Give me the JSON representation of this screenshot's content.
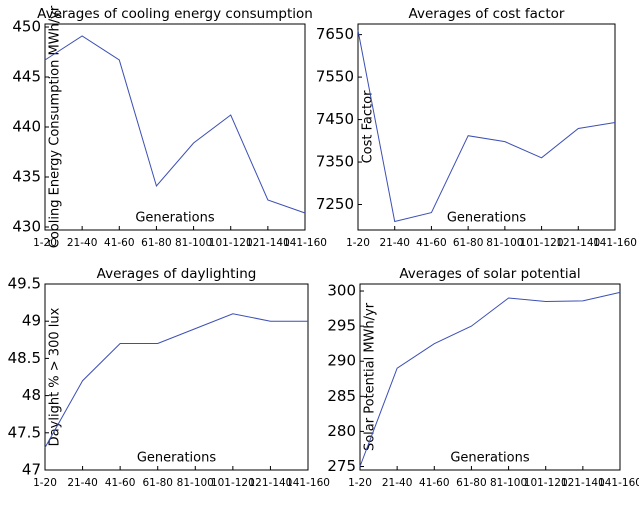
{
  "chart_data": [
    {
      "type": "line",
      "title": "Averages of cooling energy consumption",
      "ylabel": "Cooling Energy Consumption MWh/yr",
      "xlabel": "Generations",
      "categories": [
        "1-20",
        "21-40",
        "41-60",
        "61-80",
        "81-100",
        "101-120",
        "121-140",
        "141-160"
      ],
      "series": [
        {
          "color": "#3c4fb4",
          "values": [
            446.7,
            449.1,
            446.7,
            434.1,
            438.4,
            441.2,
            432.7,
            431.4
          ]
        }
      ],
      "ylim": [
        429.7,
        450.3
      ],
      "yticks": [
        430,
        435,
        440,
        445,
        450
      ]
    },
    {
      "type": "line",
      "title": "Averages of cost factor",
      "ylabel": "Cost Factor",
      "xlabel": "Generations",
      "categories": [
        "1-20",
        "21-40",
        "41-60",
        "61-80",
        "81-100",
        "101-120",
        "121-140",
        "141-160"
      ],
      "series": [
        {
          "color": "#3c4fb4",
          "values": [
            7660,
            7210,
            7231,
            7412,
            7398,
            7360,
            7429,
            7443
          ]
        }
      ],
      "ylim": [
        7190,
        7675
      ],
      "yticks": [
        7250,
        7350,
        7450,
        7550,
        7650
      ]
    },
    {
      "type": "line",
      "title": "Averages of daylighting",
      "ylabel": "Daylight % > 300 lux",
      "xlabel": "Generations",
      "categories": [
        "1-20",
        "21-40",
        "41-60",
        "61-80",
        "81-100",
        "101-120",
        "121-140",
        "141-160"
      ],
      "series": [
        {
          "color": "#3c4fb4",
          "values": [
            47.3,
            48.2,
            48.7,
            48.7,
            48.9,
            49.1,
            49.0,
            49.0
          ]
        }
      ],
      "ylim": [
        47,
        49.5
      ],
      "yticks": [
        47,
        47.5,
        48,
        48.5,
        49,
        49.5
      ]
    },
    {
      "type": "line",
      "title": "Averages of solar potential",
      "ylabel": "Solar Potential MWh/yr",
      "xlabel": "Generations",
      "categories": [
        "1-20",
        "21-40",
        "41-60",
        "61-80",
        "81-100",
        "101-120",
        "121-140",
        "141-160"
      ],
      "series": [
        {
          "color": "#3c4fb4",
          "values": [
            275,
            289,
            292.5,
            295,
            299,
            298.5,
            298.6,
            299.8
          ]
        }
      ],
      "ylim": [
        274.5,
        301
      ],
      "yticks": [
        275,
        280,
        285,
        290,
        295,
        300
      ]
    }
  ]
}
